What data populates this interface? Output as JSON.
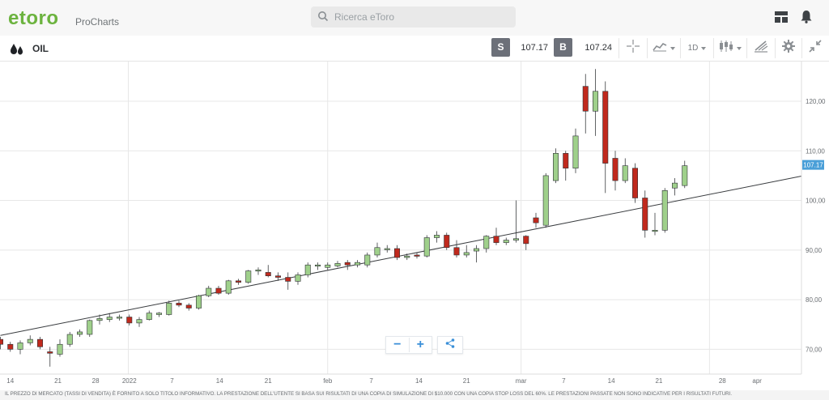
{
  "header": {
    "brand": "etoro",
    "product": "ProCharts",
    "search_placeholder": "Ricerca eToro"
  },
  "toolbar": {
    "symbol": "OIL",
    "sell_label": "S",
    "sell_price": "107.17",
    "buy_label": "B",
    "buy_price": "107.24",
    "timeframe": "1D"
  },
  "chart_data": {
    "type": "candlestick",
    "y_range": [
      65,
      128
    ],
    "y_ticks": [
      "120,00",
      "110,00",
      "100,00",
      "90,00",
      "80,00",
      "70,00"
    ],
    "y_tick_values": [
      120,
      110,
      100,
      90,
      80,
      70
    ],
    "x_ticks": [
      "14",
      "21",
      "28",
      "2022",
      "7",
      "14",
      "21",
      "feb",
      "7",
      "14",
      "21",
      "mar",
      "7",
      "14",
      "21",
      "28",
      "apr"
    ],
    "current_price_label": "107.17",
    "candles": [
      {
        "o": 72.0,
        "c": 71.0,
        "h": 72.5,
        "l": 70.0
      },
      {
        "o": 71.0,
        "c": 70.0,
        "h": 71.5,
        "l": 69.5
      },
      {
        "o": 70.0,
        "c": 71.3,
        "h": 71.8,
        "l": 69.0
      },
      {
        "o": 71.3,
        "c": 72.0,
        "h": 72.8,
        "l": 70.8
      },
      {
        "o": 72.0,
        "c": 70.5,
        "h": 72.5,
        "l": 70.0
      },
      {
        "o": 69.5,
        "c": 69.2,
        "h": 70.5,
        "l": 66.5
      },
      {
        "o": 69.0,
        "c": 71.0,
        "h": 72.0,
        "l": 68.5
      },
      {
        "o": 71.0,
        "c": 73.0,
        "h": 73.5,
        "l": 70.5
      },
      {
        "o": 73.0,
        "c": 73.5,
        "h": 74.0,
        "l": 72.5
      },
      {
        "o": 73.0,
        "c": 75.8,
        "h": 76.0,
        "l": 72.5
      },
      {
        "o": 75.8,
        "c": 76.2,
        "h": 77.0,
        "l": 75.0
      },
      {
        "o": 76.0,
        "c": 76.5,
        "h": 77.3,
        "l": 75.5
      },
      {
        "o": 76.5,
        "c": 76.5,
        "h": 77.0,
        "l": 75.8
      },
      {
        "o": 76.5,
        "c": 75.3,
        "h": 77.0,
        "l": 74.8
      },
      {
        "o": 75.3,
        "c": 76.0,
        "h": 76.5,
        "l": 74.5
      },
      {
        "o": 76.0,
        "c": 77.3,
        "h": 77.8,
        "l": 75.8
      },
      {
        "o": 77.0,
        "c": 77.3,
        "h": 77.5,
        "l": 76.5
      },
      {
        "o": 77.0,
        "c": 79.3,
        "h": 79.8,
        "l": 76.8
      },
      {
        "o": 79.3,
        "c": 78.9,
        "h": 79.8,
        "l": 78.5
      },
      {
        "o": 78.9,
        "c": 78.3,
        "h": 79.3,
        "l": 77.8
      },
      {
        "o": 78.3,
        "c": 80.8,
        "h": 81.0,
        "l": 78.0
      },
      {
        "o": 80.8,
        "c": 82.3,
        "h": 82.8,
        "l": 80.5
      },
      {
        "o": 82.3,
        "c": 81.3,
        "h": 82.8,
        "l": 81.0
      },
      {
        "o": 81.3,
        "c": 83.8,
        "h": 84.0,
        "l": 81.0
      },
      {
        "o": 83.8,
        "c": 83.5,
        "h": 84.2,
        "l": 83.0
      },
      {
        "o": 83.5,
        "c": 85.8,
        "h": 86.0,
        "l": 83.2
      },
      {
        "o": 85.8,
        "c": 86.0,
        "h": 86.5,
        "l": 85.0
      },
      {
        "o": 85.5,
        "c": 84.8,
        "h": 87.0,
        "l": 84.5
      },
      {
        "o": 84.8,
        "c": 84.5,
        "h": 85.5,
        "l": 83.8
      },
      {
        "o": 84.5,
        "c": 83.7,
        "h": 85.5,
        "l": 82.0
      },
      {
        "o": 83.7,
        "c": 85.0,
        "h": 85.5,
        "l": 83.0
      },
      {
        "o": 85.0,
        "c": 87.0,
        "h": 87.5,
        "l": 84.5
      },
      {
        "o": 87.0,
        "c": 87.0,
        "h": 87.5,
        "l": 86.0
      },
      {
        "o": 86.5,
        "c": 87.0,
        "h": 87.5,
        "l": 86.0
      },
      {
        "o": 86.8,
        "c": 87.3,
        "h": 87.8,
        "l": 86.5
      },
      {
        "o": 87.5,
        "c": 87.0,
        "h": 88.0,
        "l": 86.0
      },
      {
        "o": 87.0,
        "c": 87.5,
        "h": 88.0,
        "l": 86.5
      },
      {
        "o": 87.0,
        "c": 89.0,
        "h": 89.5,
        "l": 86.5
      },
      {
        "o": 89.0,
        "c": 90.5,
        "h": 91.5,
        "l": 88.5
      },
      {
        "o": 90.3,
        "c": 90.3,
        "h": 91.0,
        "l": 89.5
      },
      {
        "o": 90.3,
        "c": 88.5,
        "h": 91.0,
        "l": 88.0
      },
      {
        "o": 88.5,
        "c": 88.8,
        "h": 89.3,
        "l": 88.0
      },
      {
        "o": 89.0,
        "c": 88.8,
        "h": 89.5,
        "l": 88.3
      },
      {
        "o": 88.8,
        "c": 92.5,
        "h": 93.0,
        "l": 88.5
      },
      {
        "o": 92.5,
        "c": 93.0,
        "h": 93.8,
        "l": 91.5
      },
      {
        "o": 93.0,
        "c": 90.5,
        "h": 93.5,
        "l": 90.0
      },
      {
        "o": 90.5,
        "c": 89.0,
        "h": 92.0,
        "l": 88.5
      },
      {
        "o": 89.0,
        "c": 89.5,
        "h": 91.0,
        "l": 88.5
      },
      {
        "o": 89.8,
        "c": 90.3,
        "h": 91.0,
        "l": 87.5
      },
      {
        "o": 90.3,
        "c": 92.8,
        "h": 93.0,
        "l": 89.5
      },
      {
        "o": 92.8,
        "c": 91.5,
        "h": 94.5,
        "l": 91.0
      },
      {
        "o": 91.5,
        "c": 92.0,
        "h": 92.5,
        "l": 91.0
      },
      {
        "o": 92.0,
        "c": 92.3,
        "h": 100.0,
        "l": 91.5
      },
      {
        "o": 92.8,
        "c": 91.3,
        "h": 93.0,
        "l": 90.0
      },
      {
        "o": 96.5,
        "c": 95.5,
        "h": 97.5,
        "l": 94.5
      },
      {
        "o": 95.0,
        "c": 105.0,
        "h": 105.5,
        "l": 94.5
      },
      {
        "o": 104.0,
        "c": 109.5,
        "h": 110.5,
        "l": 103.5
      },
      {
        "o": 109.5,
        "c": 106.5,
        "h": 110.0,
        "l": 104.0
      },
      {
        "o": 106.5,
        "c": 113.0,
        "h": 114.5,
        "l": 105.5
      },
      {
        "o": 123.0,
        "c": 118.0,
        "h": 125.5,
        "l": 113.5
      },
      {
        "o": 118.0,
        "c": 122.0,
        "h": 126.5,
        "l": 113.0
      },
      {
        "o": 122.0,
        "c": 107.5,
        "h": 124.0,
        "l": 101.5
      },
      {
        "o": 108.5,
        "c": 104.0,
        "h": 110.0,
        "l": 102.0
      },
      {
        "o": 104.0,
        "c": 107.0,
        "h": 108.5,
        "l": 103.5
      },
      {
        "o": 106.5,
        "c": 100.5,
        "h": 107.5,
        "l": 99.5
      },
      {
        "o": 100.5,
        "c": 94.0,
        "h": 102.0,
        "l": 92.5
      },
      {
        "o": 94.0,
        "c": 94.0,
        "h": 97.5,
        "l": 93.0
      },
      {
        "o": 94.0,
        "c": 102.0,
        "h": 102.5,
        "l": 93.5
      },
      {
        "o": 102.5,
        "c": 103.5,
        "h": 104.5,
        "l": 101.0
      },
      {
        "o": 103.0,
        "c": 107.0,
        "h": 108.0,
        "l": 102.5
      }
    ],
    "trendline": [
      {
        "x": 0,
        "y": 72.8
      },
      {
        "x": 79,
        "y": 104.2
      }
    ],
    "colors": {
      "up": "#9fd08b",
      "down": "#c0291d",
      "grid": "#e7e7e7",
      "axis": "#dddddd",
      "price_tag": "#4a9fd8"
    }
  },
  "footer": {
    "disclaimer": "IL PREZZO DI MERCATO (TASSI DI VENDITA) È FORNITO A SOLO TITOLO INFORMATIVO. LA PRESTAZIONE DELL'UTENTE SI BASA SUI RISULTATI DI UNA COPIA DI SIMULAZIONE DI $10.000 CON UNA COPIA STOP LOSS DEL 60%. LE PRESTAZIONI PASSATE NON SONO INDICATIVE PER I RISULTATI FUTURI."
  }
}
